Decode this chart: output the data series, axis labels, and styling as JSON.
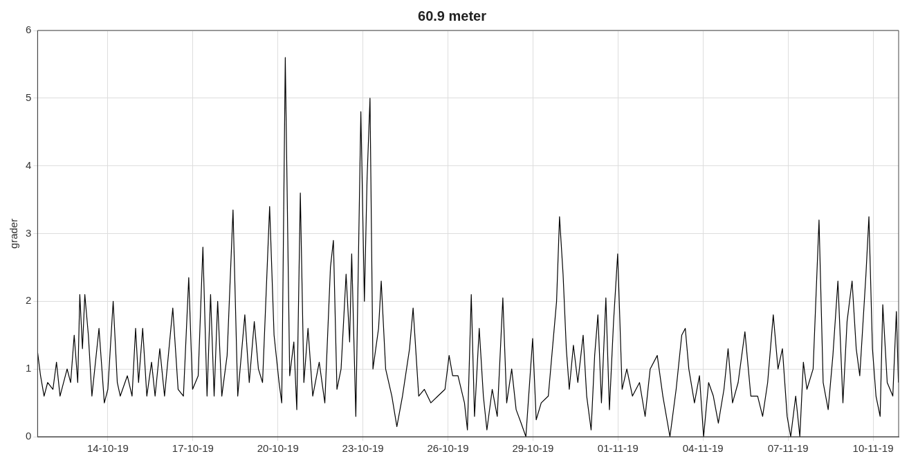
{
  "chart_data": {
    "type": "line",
    "title": "60.9 meter",
    "ylabel": "grader",
    "xlim": [
      "--10-11T12:30",
      "--11-10T21:40"
    ],
    "xticks": [
      {
        "value": "--10-14",
        "label": "14-10-19"
      },
      {
        "value": "--10-17",
        "label": "17-10-19"
      },
      {
        "value": "--10-20",
        "label": "20-10-19"
      },
      {
        "value": "--10-23",
        "label": "23-10-19"
      },
      {
        "value": "--10-26",
        "label": "26-10-19"
      },
      {
        "value": "--10-29",
        "label": "29-10-19"
      },
      {
        "value": "--11-01",
        "label": "01-11-19"
      },
      {
        "value": "--11-04",
        "label": "04-11-19"
      },
      {
        "value": "--11-07",
        "label": "07-11-19"
      },
      {
        "value": "--11-10",
        "label": "10-11-19"
      }
    ],
    "ylim": [
      0,
      6
    ],
    "yticks": [
      0,
      1,
      2,
      3,
      4,
      5,
      6
    ],
    "grid": true,
    "legend": false,
    "marker": "none",
    "line_style": "solid",
    "series": [
      {
        "color": "#000000",
        "x": [
          "--10-11T12:30",
          "--10-11T15:00",
          "--10-11T18:00",
          "--10-11T21:00",
          "--10-12T01:30",
          "--10-12T04:30",
          "--10-12T07:30",
          "--10-12T13:30",
          "--10-12T16:30",
          "--10-12T19:30",
          "--10-12T22:30",
          "--10-13T00:15",
          "--10-13T02:30",
          "--10-13T04:30",
          "--10-13T07:30",
          "--10-13T10:30",
          "--10-13T16:30",
          "--10-13T21:00",
          "--10-14T00:00",
          "--10-14T04:30",
          "--10-14T08:00",
          "--10-14T10:30",
          "--10-14T16:30",
          "--10-14T20:30",
          "--10-14T23:30",
          "--10-15T02:00",
          "--10-15T05:30",
          "--10-15T09:00",
          "--10-15T13:00",
          "--10-15T16:00",
          "--10-15T20:00",
          "--10-16T00:00",
          "--10-16T07:00",
          "--10-16T11:30",
          "--10-16T16:00",
          "--10-16T20:30",
          "--10-16T23:45",
          "--10-17T04:30",
          "--10-17T08:30",
          "--10-17T12:00",
          "--10-17T15:00",
          "--10-17T18:00",
          "--10-17T21:00",
          "--10-18T00:30",
          "--10-18T05:00",
          "--10-18T10:00",
          "--10-18T14:00",
          "--10-18T20:00",
          "--10-18T23:45",
          "--10-19T04:00",
          "--10-19T07:30",
          "--10-19T11:00",
          "--10-19T17:00",
          "--10-19T20:45",
          "--10-20T01:00",
          "--10-20T03:15",
          "--10-20T06:15",
          "--10-20T10:00",
          "--10-20T13:30",
          "--10-20T16:00",
          "--10-20T19:00",
          "--10-20T22:00",
          "--10-21T01:30",
          "--10-21T05:30",
          "--10-21T11:00",
          "--10-21T15:45",
          "--10-21T20:30",
          "--10-21T23:00",
          "--10-22T02:00",
          "--10-22T05:30",
          "--10-22T09:45",
          "--10-22T12:45",
          "--10-22T14:30",
          "--10-22T18:00",
          "--10-22T22:15",
          "--10-23T01:15",
          "--10-23T03:30",
          "--10-23T06:00",
          "--10-23T08:30",
          "--10-23T13:15",
          "--10-23T15:30",
          "--10-23T19:15",
          "--10-24T00:30",
          "--10-24T04:45",
          "--10-24T09:30",
          "--10-24T15:30",
          "--10-24T18:30",
          "--10-24T23:15",
          "--10-25T04:00",
          "--10-25T09:30",
          "--10-25T15:30",
          "--10-25T21:30",
          "--10-26T01:00",
          "--10-26T04:00",
          "--10-26T08:30",
          "--10-26T14:00",
          "--10-26T16:30",
          "--10-26T19:45",
          "--10-26T22:30",
          "--10-27T02:30",
          "--10-27T06:00",
          "--10-27T09:00",
          "--10-27T13:30",
          "--10-27T17:45",
          "--10-27T22:30",
          "--10-28T01:45",
          "--10-28T06:00",
          "--10-28T09:45",
          "--10-28T14:00",
          "--10-28T18:00",
          "--10-28T23:45",
          "--10-29T02:45",
          "--10-29T07:00",
          "--10-29T13:00",
          "--10-29T20:00",
          "--10-29T22:30",
          "--10-30T01:30",
          "--10-30T04:15",
          "--10-30T06:45",
          "--10-30T10:15",
          "--10-30T14:00",
          "--10-30T18:30",
          "--10-30T21:30",
          "--10-31T01:15",
          "--10-31T04:15",
          "--10-31T07:00",
          "--10-31T10:00",
          "--10-31T13:45",
          "--10-31T16:45",
          "--10-31T20:15",
          "--10-31T23:45",
          "--11-01T03:30",
          "--11-01T07:30",
          "--11-01T12:15",
          "--11-01T18:15",
          "--11-01T23:00",
          "--11-02T03:15",
          "--11-02T09:15",
          "--11-02T14:00",
          "--11-02T20:00",
          "--11-03T01:15",
          "--11-03T06:00",
          "--11-03T09:00",
          "--11-03T12:00",
          "--11-03T16:45",
          "--11-03T21:00",
          "--11-04T00:30",
          "--11-04T04:45",
          "--11-04T08:45",
          "--11-04T13:00",
          "--11-04T17:45",
          "--11-04T21:15",
          "--11-05T01:00",
          "--11-05T05:45",
          "--11-05T11:30",
          "--11-05T16:30",
          "--11-05T22:15",
          "--11-06T02:30",
          "--11-06T06:45",
          "--11-06T11:30",
          "--11-06T15:30",
          "--11-06T19:15",
          "--11-06T23:15",
          "--11-07T02:15",
          "--11-07T06:30",
          "--11-07T10:00",
          "--11-07T13:00",
          "--11-07T16:00",
          "--11-07T21:15",
          "--11-08T02:15",
          "--11-08T05:45",
          "--11-08T10:00",
          "--11-08T14:00",
          "--11-08T18:15",
          "--11-08T22:30",
          "--11-09T02:00",
          "--11-09T06:15",
          "--11-09T09:45",
          "--11-09T12:45",
          "--11-09T18:00",
          "--11-09T20:30",
          "--11-09T23:30",
          "--11-10T02:30",
          "--11-10T06:00",
          "--11-10T08:15",
          "--11-10T12:00",
          "--11-10T16:45",
          "--11-10T19:45",
          "--11-10T21:30"
        ],
        "values": [
          1.25,
          0.9,
          0.6,
          0.8,
          0.7,
          1.1,
          0.6,
          1.0,
          0.8,
          1.5,
          0.8,
          2.1,
          1.3,
          2.1,
          1.5,
          0.6,
          1.6,
          0.5,
          0.7,
          2.0,
          0.8,
          0.6,
          0.9,
          0.6,
          1.6,
          0.8,
          1.6,
          0.6,
          1.1,
          0.6,
          1.3,
          0.6,
          1.9,
          0.7,
          0.6,
          2.35,
          0.7,
          0.9,
          2.8,
          0.6,
          2.1,
          0.6,
          2.0,
          0.6,
          1.2,
          3.35,
          0.6,
          1.8,
          0.8,
          1.7,
          1.0,
          0.8,
          3.4,
          1.5,
          0.8,
          0.5,
          5.6,
          0.9,
          1.4,
          0.4,
          3.6,
          0.8,
          1.6,
          0.6,
          1.1,
          0.5,
          2.5,
          2.9,
          0.7,
          1.0,
          2.4,
          1.4,
          2.7,
          0.3,
          4.8,
          2.0,
          3.8,
          5.0,
          1.0,
          1.6,
          2.3,
          1.0,
          0.6,
          0.15,
          0.6,
          1.3,
          1.9,
          0.6,
          0.7,
          0.5,
          0.6,
          0.7,
          1.2,
          0.9,
          0.9,
          0.5,
          0.1,
          2.1,
          0.3,
          1.6,
          0.6,
          0.1,
          0.7,
          0.3,
          2.05,
          0.5,
          1.0,
          0.4,
          0.2,
          0.0,
          1.45,
          0.25,
          0.5,
          0.6,
          2.0,
          3.25,
          2.4,
          1.3,
          0.7,
          1.35,
          0.8,
          1.5,
          0.6,
          0.1,
          1.2,
          1.8,
          0.5,
          2.05,
          0.4,
          1.7,
          2.7,
          0.7,
          1.0,
          0.6,
          0.8,
          0.3,
          1.0,
          1.2,
          0.6,
          0.0,
          0.7,
          1.5,
          1.6,
          1.0,
          0.5,
          0.9,
          0.0,
          0.8,
          0.6,
          0.2,
          0.7,
          1.3,
          0.5,
          0.8,
          1.55,
          0.6,
          0.6,
          0.3,
          0.8,
          1.8,
          1.0,
          1.3,
          0.3,
          0.0,
          0.6,
          0.0,
          1.1,
          0.7,
          1.0,
          3.2,
          0.8,
          0.4,
          1.2,
          2.3,
          0.5,
          1.7,
          2.3,
          1.3,
          0.9,
          2.4,
          3.25,
          1.3,
          0.6,
          0.3,
          1.95,
          0.8,
          0.6,
          1.85,
          0.8
        ]
      }
    ]
  }
}
